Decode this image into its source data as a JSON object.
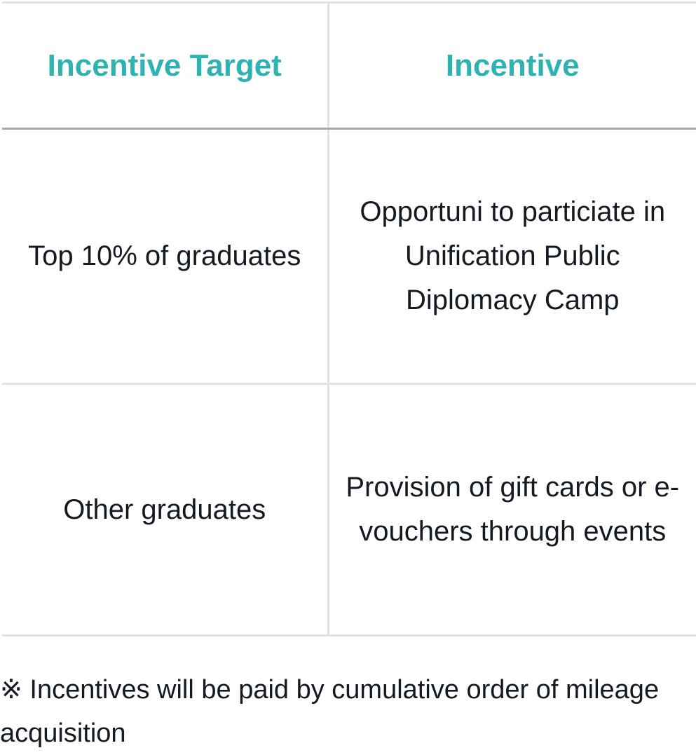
{
  "table": {
    "headers": [
      "Incentive Target",
      "Incentive"
    ],
    "rows": [
      {
        "target": "Top 10% of graduates",
        "incentive": "Opportuni to particiate in Unification Public Diplomacy Camp"
      },
      {
        "target": "Other graduates",
        "incentive": "Provision of gift cards or e-vouchers through events"
      }
    ]
  },
  "note": "※ Incentives will be paid by cumulative order of mileage acquisition",
  "colors": {
    "header_text": "#2fb3b1",
    "body_text": "#141a22",
    "rule_light": "#e2e2e2",
    "rule_dark": "#a9a9a9"
  }
}
